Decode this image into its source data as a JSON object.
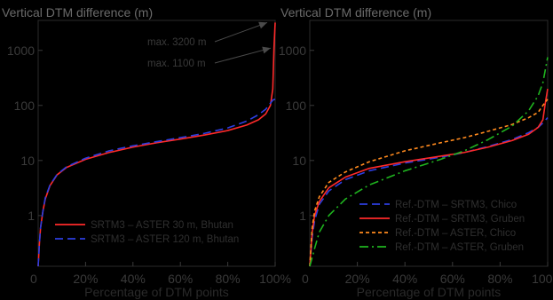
{
  "chart_data": [
    {
      "type": "line",
      "title": "Vertical DTM difference (m)",
      "xlabel": "Percentage of DTM points",
      "ylabel": "",
      "yscale": "log",
      "xlim": [
        0,
        100
      ],
      "ylim": [
        0.12,
        3500
      ],
      "grid": false,
      "legend_position": "bottom-center",
      "x_ticks": [
        "0",
        "20%",
        "40%",
        "60%",
        "80%",
        "100%"
      ],
      "y_ticks": [
        {
          "value": 1,
          "label": "1"
        },
        {
          "value": 10,
          "label": "10"
        },
        {
          "value": 100,
          "label": "100"
        },
        {
          "value": 1000,
          "label": "1000"
        }
      ],
      "annotations": [
        {
          "text": "max. 3200 m",
          "value": 3200
        },
        {
          "text": "max. 1100 m",
          "value": 1100
        }
      ],
      "series": [
        {
          "name": "SRTM3 – ASTER 30 m, Bhutan",
          "color": "#ff2a2a",
          "dash": "solid",
          "points": [
            [
              0,
              0.12
            ],
            [
              0.5,
              0.3
            ],
            [
              1,
              0.6
            ],
            [
              2,
              1.2
            ],
            [
              3,
              2
            ],
            [
              5,
              3.5
            ],
            [
              8,
              5.5
            ],
            [
              12,
              7.5
            ],
            [
              20,
              10.5
            ],
            [
              30,
              14
            ],
            [
              40,
              17.5
            ],
            [
              50,
              21
            ],
            [
              60,
              24.5
            ],
            [
              70,
              29
            ],
            [
              80,
              35
            ],
            [
              88,
              44
            ],
            [
              93,
              55
            ],
            [
              96,
              70
            ],
            [
              98,
              100
            ],
            [
              99,
              200
            ],
            [
              99.5,
              1100
            ],
            [
              100,
              3200
            ]
          ]
        },
        {
          "name": "SRTM3 – ASTER 120 m, Bhutan",
          "color": "#2d3ee0",
          "dash": "dashed",
          "points": [
            [
              0,
              0.12
            ],
            [
              0.5,
              0.3
            ],
            [
              1,
              0.6
            ],
            [
              2,
              1.2
            ],
            [
              3,
              2.1
            ],
            [
              5,
              3.6
            ],
            [
              8,
              5.6
            ],
            [
              12,
              7.7
            ],
            [
              20,
              11
            ],
            [
              30,
              15
            ],
            [
              40,
              18.5
            ],
            [
              50,
              22
            ],
            [
              60,
              26
            ],
            [
              70,
              31
            ],
            [
              80,
              39
            ],
            [
              88,
              52
            ],
            [
              93,
              68
            ],
            [
              96,
              85
            ],
            [
              98,
              110
            ],
            [
              99,
              125
            ],
            [
              100,
              130
            ]
          ]
        }
      ]
    },
    {
      "type": "line",
      "title": "Vertical DTM difference (m)",
      "xlabel": "Percentage of DTM points",
      "ylabel": "",
      "yscale": "log",
      "xlim": [
        0,
        100
      ],
      "ylim": [
        0.12,
        3500
      ],
      "grid": false,
      "legend_position": "bottom-right",
      "x_ticks": [
        "0",
        "20%",
        "40%",
        "60%",
        "80%",
        "100%"
      ],
      "y_ticks": [
        {
          "value": 1,
          "label": "1"
        },
        {
          "value": 10,
          "label": "10"
        },
        {
          "value": 100,
          "label": "100"
        },
        {
          "value": 1000,
          "label": "1000"
        }
      ],
      "series": [
        {
          "name": "Ref.-DTM – SRTM3, Chico",
          "color": "#2d3ee0",
          "dash": "dashed",
          "points": [
            [
              0,
              0.12
            ],
            [
              1,
              0.4
            ],
            [
              2,
              0.8
            ],
            [
              4,
              1.6
            ],
            [
              8,
              2.8
            ],
            [
              15,
              4.5
            ],
            [
              25,
              6.5
            ],
            [
              40,
              9
            ],
            [
              55,
              11.5
            ],
            [
              65,
              14
            ],
            [
              75,
              18
            ],
            [
              85,
              24
            ],
            [
              92,
              32
            ],
            [
              96,
              40
            ],
            [
              98,
              48
            ],
            [
              100,
              60
            ]
          ]
        },
        {
          "name": "Ref.-DTM – SRTM3, Gruben",
          "color": "#ff2a2a",
          "dash": "solid",
          "points": [
            [
              0,
              0.12
            ],
            [
              1,
              0.5
            ],
            [
              2,
              1
            ],
            [
              4,
              1.8
            ],
            [
              8,
              3.2
            ],
            [
              15,
              5
            ],
            [
              25,
              7.2
            ],
            [
              40,
              9.5
            ],
            [
              55,
              12
            ],
            [
              65,
              14
            ],
            [
              75,
              17.5
            ],
            [
              85,
              23
            ],
            [
              92,
              30
            ],
            [
              96,
              40
            ],
            [
              98,
              55
            ],
            [
              99,
              110
            ],
            [
              100,
              200
            ]
          ]
        },
        {
          "name": "Ref.-DTM – ASTER, Chico",
          "color": "#ff8a1e",
          "dash": "dotted",
          "points": [
            [
              0,
              0.12
            ],
            [
              1,
              0.6
            ],
            [
              2,
              1.2
            ],
            [
              4,
              2.2
            ],
            [
              8,
              4
            ],
            [
              15,
              6.2
            ],
            [
              25,
              9.5
            ],
            [
              40,
              15
            ],
            [
              55,
              21
            ],
            [
              65,
              26
            ],
            [
              75,
              34
            ],
            [
              85,
              45
            ],
            [
              92,
              60
            ],
            [
              96,
              75
            ],
            [
              98,
              100
            ],
            [
              100,
              130
            ]
          ]
        },
        {
          "name": "Ref.-DTM – ASTER, Gruben",
          "color": "#1fb41f",
          "dash": "dashdot",
          "points": [
            [
              0,
              0.12
            ],
            [
              2,
              0.25
            ],
            [
              4,
              0.5
            ],
            [
              8,
              1
            ],
            [
              15,
              2
            ],
            [
              25,
              3.6
            ],
            [
              40,
              6.5
            ],
            [
              55,
              10.5
            ],
            [
              65,
              15
            ],
            [
              75,
              24
            ],
            [
              85,
              42
            ],
            [
              92,
              80
            ],
            [
              96,
              150
            ],
            [
              98,
              260
            ],
            [
              100,
              750
            ]
          ]
        }
      ]
    }
  ]
}
